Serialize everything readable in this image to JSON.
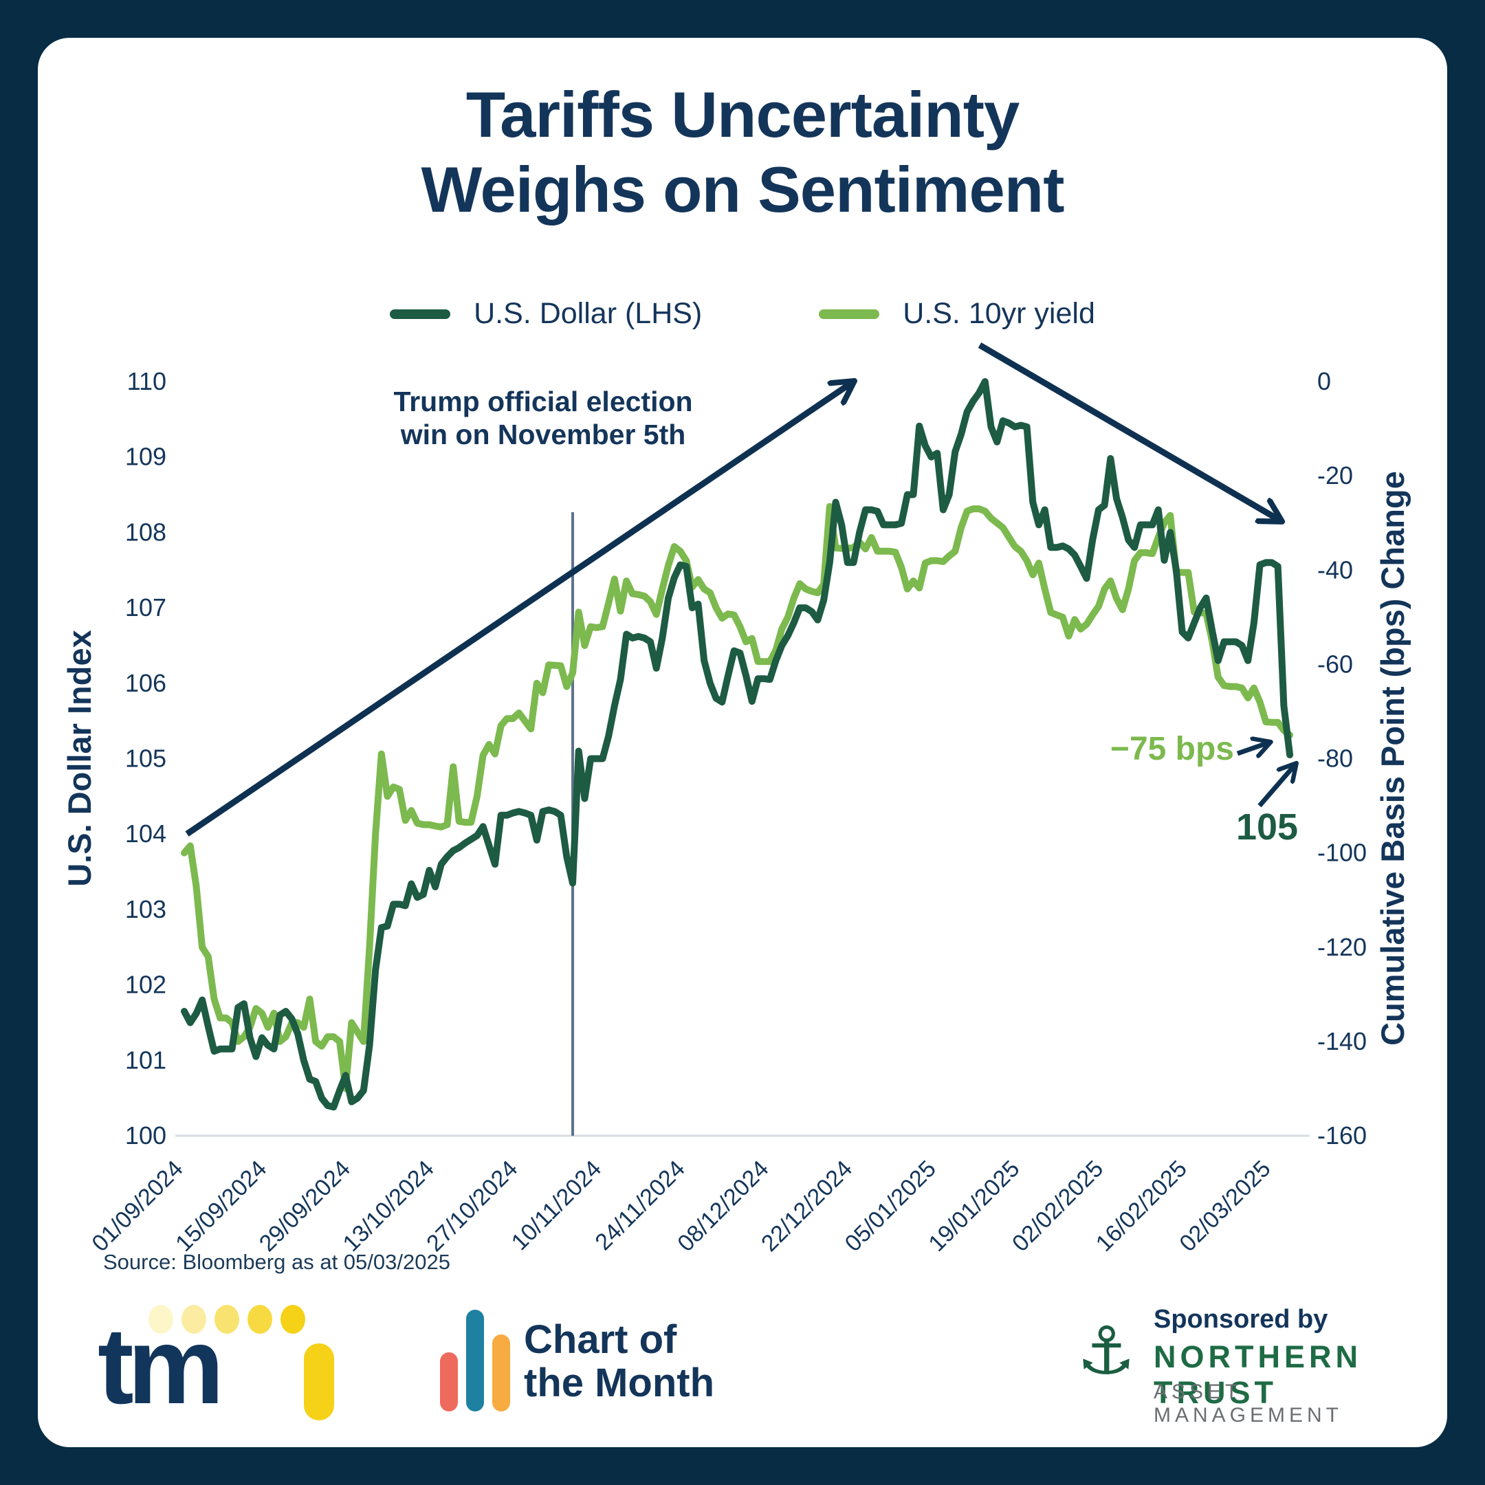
{
  "title": {
    "line1": "Tariffs Uncertainty",
    "line2": "Weighs on Sentiment"
  },
  "legend": {
    "series1_label": "U.S. Dollar (LHS)",
    "series2_label": "U.S. 10yr yield"
  },
  "annotations": {
    "election_note": "Trump official election win on November 5th",
    "bps_end_label": "−75 bps",
    "dxy_end_label": "105"
  },
  "source_note": "Source: Bloomberg as at 05/03/2025",
  "footer": {
    "tmi_word": "tm",
    "chart_of_month_line1": "Chart of",
    "chart_of_month_line2": "the Month",
    "sponsored_by": "Sponsored by",
    "sponsor_name": "NORTHERN TRUST",
    "sponsor_sub": "ASSET MANAGEMENT",
    "anchor_glyph": "⚓"
  },
  "colors": {
    "frame_navy": "#072c44",
    "text_navy": "#14355a",
    "dark_green": "#1d5b43",
    "light_green": "#7cb94e",
    "arrow_navy": "#0e3151",
    "vline_slate": "#5d7389",
    "axis_line_gray": "#d9dde2",
    "sponsor_green": "#1e6b45",
    "sponsor_gray": "#6b6e71",
    "tmi_yellow": "#f5d118",
    "tmi_red": "#ee6a5c",
    "tmi_teal": "#1e81a2",
    "tmi_orange": "#f8ab40"
  },
  "chart_data": {
    "type": "line",
    "title": "Tariffs Uncertainty Weighs on Sentiment",
    "x_tick_labels": [
      "01/09/2024",
      "15/09/2024",
      "29/09/2024",
      "13/10/2024",
      "27/10/2024",
      "10/11/2024",
      "24/11/2024",
      "08/12/2024",
      "22/12/2024",
      "05/01/2025",
      "19/01/2025",
      "02/02/2025",
      "16/02/2025",
      "02/03/2025"
    ],
    "x_tick_interval_days": 14,
    "x_range_days": [
      0,
      185
    ],
    "event_vline_day": 65,
    "left_axis": {
      "label": "U.S. Dollar Index",
      "range": [
        100,
        110
      ],
      "ticks": [
        100,
        101,
        102,
        103,
        104,
        105,
        106,
        107,
        108,
        109,
        110
      ]
    },
    "right_axis": {
      "label": "Cumulative Basis Point (bps) Change",
      "range": [
        -160,
        0
      ],
      "ticks": [
        0,
        -20,
        -40,
        -60,
        -80,
        -100,
        -120,
        -140,
        -160
      ]
    },
    "grid": false,
    "legend_position": "top",
    "series": [
      {
        "name": "U.S. 10yr yield",
        "axis": "right",
        "color": "#7cb94e",
        "start_day": 0,
        "step_days": 1,
        "values": [
          -100,
          -98.5,
          -107,
          -120,
          -122,
          -131,
          -135,
          -135,
          -136,
          -140,
          -139,
          -137,
          -133,
          -134,
          -137,
          -134,
          -140,
          -139,
          -136,
          -136,
          -137,
          -131,
          -140,
          -141,
          -139,
          -139,
          -140,
          -150,
          -136,
          -138,
          -140,
          -120,
          -96,
          -79,
          -88,
          -86,
          -86.5,
          -93.1,
          -91,
          -93.7,
          -94,
          -94,
          -94.3,
          -94.5,
          -94,
          -81.7,
          -93.3,
          -93.5,
          -93.5,
          -88,
          -79.3,
          -77,
          -79,
          -73,
          -71.5,
          -71.5,
          -70.3,
          -72,
          -73.7,
          -64,
          -66,
          -60.1,
          -60.2,
          -60.3,
          -64.7,
          -61.8,
          -48.9,
          -56,
          -52,
          -52.2,
          -52,
          -47,
          -41.9,
          -48.7,
          -42.3,
          -45,
          -45.2,
          -45.5,
          -46.7,
          -49.4,
          -44,
          -39,
          -35,
          -36,
          -38,
          -43.6,
          -42,
          -44,
          -44.8,
          -48,
          -50.2,
          -49.3,
          -49.5,
          -52,
          -55.2,
          -54.5,
          -59.4,
          -59.4,
          -59.4,
          -57,
          -52.5,
          -50,
          -46,
          -42.9,
          -44,
          -44.5,
          -44.8,
          -43,
          -26.5,
          -35.3,
          -35.4,
          -35.4,
          -35.2,
          -34.1,
          -35.5,
          -33.1,
          -36,
          -36,
          -36,
          -36.2,
          -39.4,
          -44,
          -42.3,
          -43.8,
          -38.5,
          -38,
          -38,
          -38.2,
          -37,
          -36,
          -31,
          -27.5,
          -27,
          -27,
          -27.5,
          -29,
          -30,
          -31,
          -33,
          -35,
          -36,
          -38,
          -41,
          -38.5,
          -44,
          -49,
          -49.5,
          -50,
          -54,
          -50.5,
          -52.5,
          -51.5,
          -49.5,
          -47.7,
          -44,
          -42.3,
          -46,
          -48.4,
          -44,
          -38,
          -36.3,
          -36.3,
          -36.5,
          -33,
          -30,
          -28.4,
          -40.4,
          -40.5,
          -40.5,
          -48.9,
          -49,
          -49.2,
          -55,
          -62.7,
          -64.5,
          -64.7,
          -64.7,
          -65,
          -67.1,
          -65,
          -68,
          -72.2,
          -72.3,
          -72.3,
          -74,
          -75
        ]
      },
      {
        "name": "U.S. Dollar (LHS)",
        "axis": "left",
        "color": "#1d5b43",
        "start_day": 0,
        "step_days": 1,
        "values": [
          101.65,
          101.5,
          101.62,
          101.8,
          101.45,
          101.12,
          101.15,
          101.15,
          101.15,
          101.7,
          101.75,
          101.3,
          101.05,
          101.3,
          101.2,
          101.15,
          101.6,
          101.65,
          101.55,
          101.35,
          101.0,
          100.75,
          100.72,
          100.5,
          100.4,
          100.38,
          100.6,
          100.8,
          100.45,
          100.5,
          100.6,
          101.2,
          102.2,
          102.76,
          102.78,
          103.07,
          103.07,
          103.05,
          103.34,
          103.16,
          103.2,
          103.52,
          103.3,
          103.6,
          103.7,
          103.78,
          103.82,
          103.88,
          103.93,
          103.98,
          104.1,
          103.85,
          103.6,
          104.25,
          104.25,
          104.28,
          104.3,
          104.28,
          104.25,
          103.92,
          104.3,
          104.32,
          104.3,
          104.25,
          103.7,
          103.35,
          105.1,
          104.47,
          105.0,
          105.0,
          105.0,
          105.3,
          105.7,
          106.05,
          106.65,
          106.6,
          106.62,
          106.6,
          106.55,
          106.2,
          106.6,
          107.13,
          107.4,
          107.57,
          107.55,
          107.0,
          107.05,
          106.3,
          106.0,
          105.8,
          105.75,
          106.1,
          106.43,
          106.4,
          106.1,
          105.76,
          106.06,
          106.06,
          106.05,
          106.3,
          106.5,
          106.63,
          106.8,
          107.0,
          107.0,
          106.95,
          106.84,
          107.1,
          107.6,
          108.4,
          108.1,
          107.6,
          107.6,
          108.0,
          108.3,
          108.3,
          108.28,
          108.1,
          108.1,
          108.1,
          108.12,
          108.5,
          108.5,
          109.41,
          109.15,
          109.0,
          109.05,
          108.3,
          108.5,
          109.07,
          109.3,
          109.6,
          109.74,
          109.85,
          110.0,
          109.4,
          109.2,
          109.48,
          109.45,
          109.4,
          109.42,
          109.4,
          108.4,
          108.1,
          108.3,
          107.8,
          107.8,
          107.82,
          107.78,
          107.7,
          107.55,
          107.39,
          107.9,
          108.3,
          108.36,
          108.98,
          108.45,
          108.2,
          107.9,
          107.8,
          108.1,
          108.1,
          108.1,
          108.3,
          107.63,
          108.0,
          107.5,
          106.68,
          106.6,
          106.8,
          107.0,
          107.13,
          106.7,
          106.3,
          106.55,
          106.55,
          106.55,
          106.5,
          106.3,
          106.8,
          107.57,
          107.6,
          107.6,
          107.55,
          105.7,
          105.05
        ]
      }
    ]
  }
}
